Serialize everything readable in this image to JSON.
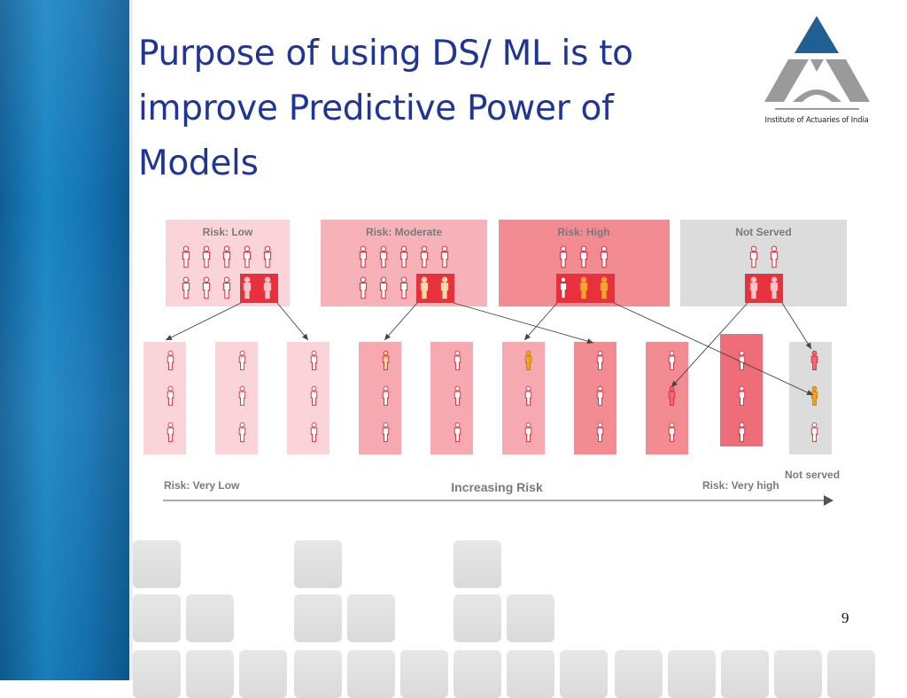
{
  "slide": {
    "title": "Purpose of using DS/ ML is to improve Predictive Power of Models",
    "page_number": "9",
    "logo_caption": "Institute of Actuaries of India"
  },
  "colors": {
    "title": "#1f3597",
    "sidebar": "#1677b7",
    "person_outline": "#d9283b",
    "highlight": "#e8313d",
    "accent_figure": "#f0a520",
    "logo_blue": "#1f5f94",
    "logo_gray": "#9a9a9a"
  },
  "diagram": {
    "top_groups": [
      {
        "label": "Risk: Low",
        "bg": "#fad4d8"
      },
      {
        "label": "Risk: Moderate",
        "bg": "#f6b2b8"
      },
      {
        "label": "Risk: High",
        "bg": "#f38b93"
      },
      {
        "label": "Not Served",
        "bg": "#dcdcdc"
      }
    ],
    "bottom_columns": [
      {
        "bg": "#fad4d8"
      },
      {
        "bg": "#fad4d8"
      },
      {
        "bg": "#fad4d8"
      },
      {
        "bg": "#f6a9b0"
      },
      {
        "bg": "#f6a9b0"
      },
      {
        "bg": "#f6a9b0"
      },
      {
        "bg": "#f38b93"
      },
      {
        "bg": "#f38b93"
      },
      {
        "bg": "#ee6d78"
      },
      {
        "bg": "#dcdcdc"
      }
    ],
    "axis": {
      "left_label": "Risk: Very Low",
      "center_label": "Increasing Risk",
      "right_label": "Risk: Very high",
      "not_served_label": "Not served"
    }
  }
}
